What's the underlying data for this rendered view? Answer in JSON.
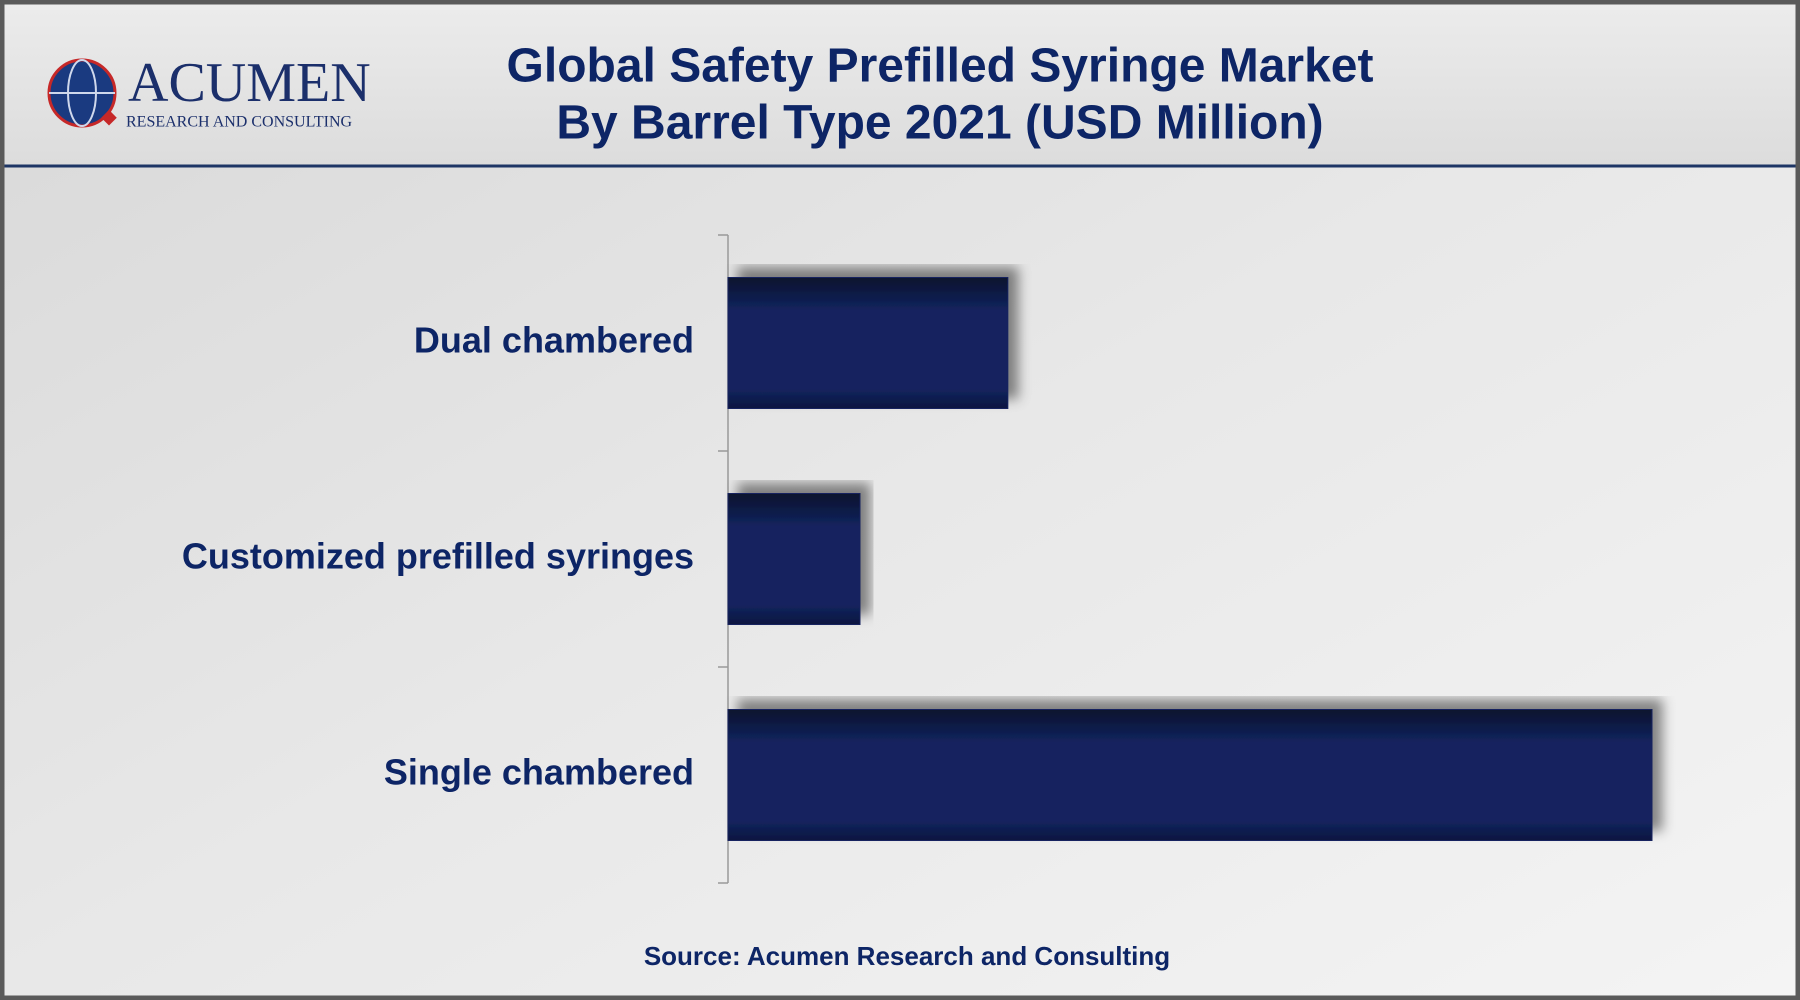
{
  "logo": {
    "name": "ACUMEN",
    "tagline": "RESEARCH AND CONSULTING"
  },
  "chart_data": {
    "type": "bar",
    "orientation": "horizontal",
    "title": [
      "Global Safety Prefilled Syringe Market",
      "By Barrel Type 2021 (USD Million)"
    ],
    "categories": [
      "Dual chambered",
      "Customized prefilled syringes",
      "Single chambered"
    ],
    "values": [
      1060,
      500,
      3500
    ],
    "color": "#13245e",
    "xlim": [
      0,
      3500
    ]
  },
  "source": "Source: Acumen Research and Consulting"
}
